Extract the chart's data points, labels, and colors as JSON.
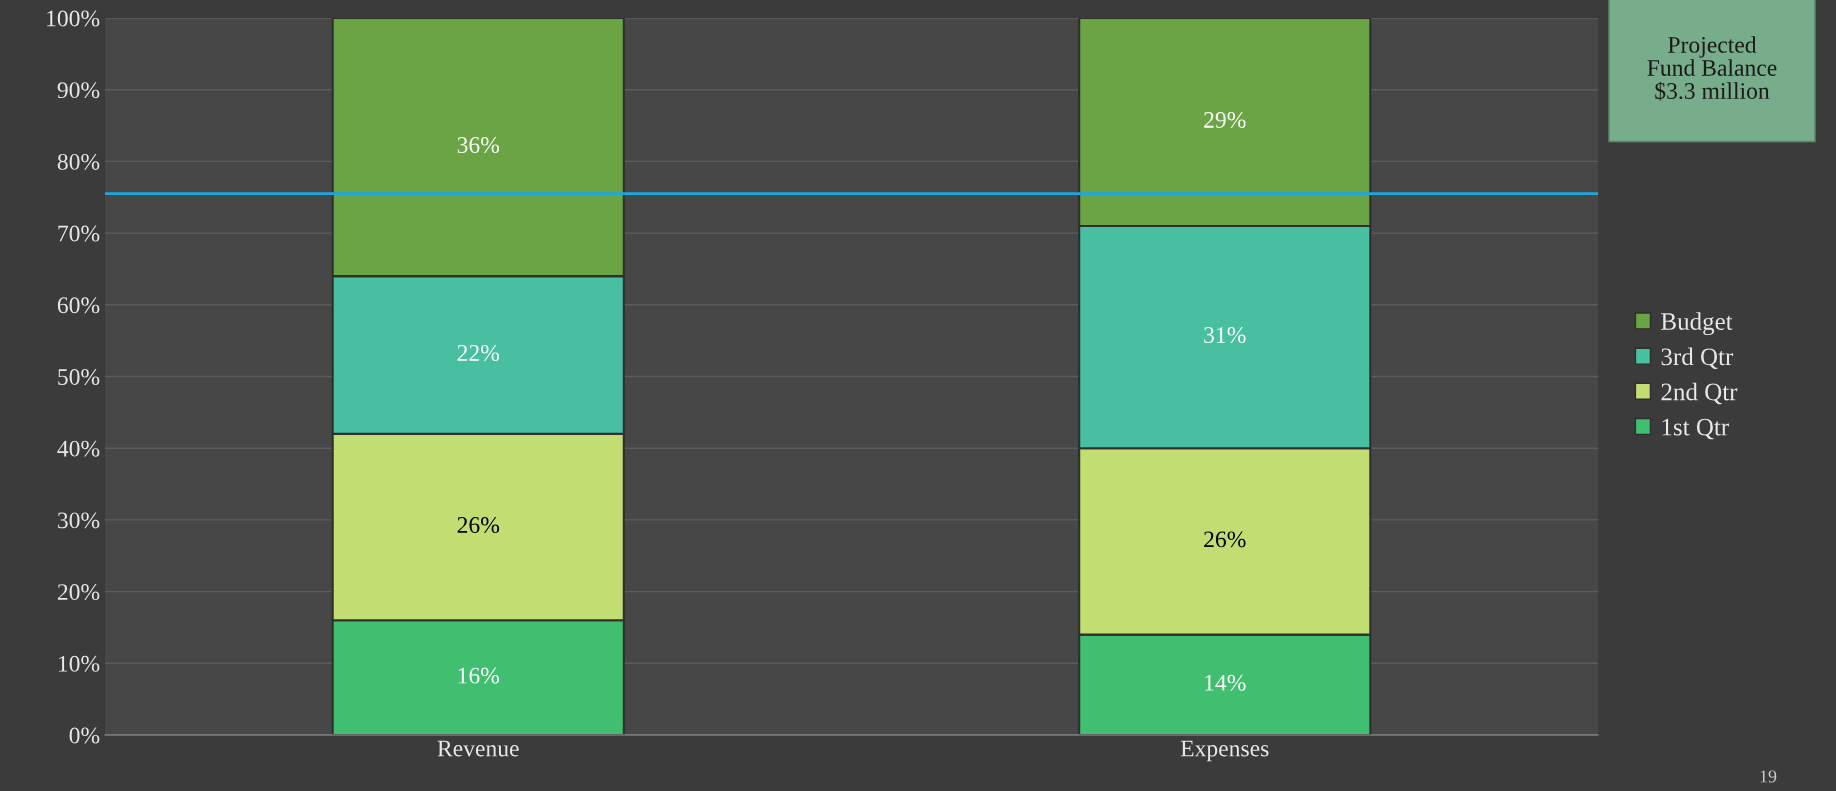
{
  "chart_data": {
    "type": "bar",
    "stacked": true,
    "categories": [
      "Revenue",
      "Expenses"
    ],
    "series": [
      {
        "name": "1st Qtr",
        "color": "#3fbf6f",
        "values": [
          16,
          14
        ],
        "value_labels": [
          "16%",
          "14%"
        ]
      },
      {
        "name": "2nd Qtr",
        "color": "#c2dd72",
        "values": [
          26,
          26
        ],
        "value_labels": [
          "26%",
          "26%"
        ]
      },
      {
        "name": "3rd Qtr",
        "color": "#47bfa0",
        "values": [
          22,
          31
        ],
        "value_labels": [
          "22%",
          "31%"
        ]
      },
      {
        "name": "Budget",
        "color": "#6aa444",
        "values": [
          36,
          29
        ],
        "value_labels": [
          "36%",
          "29%"
        ]
      }
    ],
    "ylim": [
      0,
      100
    ],
    "yticks": [
      {
        "value": 0,
        "label": "0%"
      },
      {
        "value": 10,
        "label": "10%"
      },
      {
        "value": 20,
        "label": "20%"
      },
      {
        "value": 30,
        "label": "30%"
      },
      {
        "value": 40,
        "label": "40%"
      },
      {
        "value": 50,
        "label": "50%"
      },
      {
        "value": 60,
        "label": "60%"
      },
      {
        "value": 70,
        "label": "70%"
      },
      {
        "value": 80,
        "label": "80%"
      },
      {
        "value": 90,
        "label": "90%"
      },
      {
        "value": 100,
        "label": "100%"
      }
    ],
    "grid": "y",
    "legend": "right",
    "ref_lines": [
      {
        "axis": "y",
        "value": 75.5,
        "color": "#1ea6e0"
      }
    ],
    "annotations": [
      "Projected\nFund Balance\n$3.3 million",
      "19"
    ]
  }
}
